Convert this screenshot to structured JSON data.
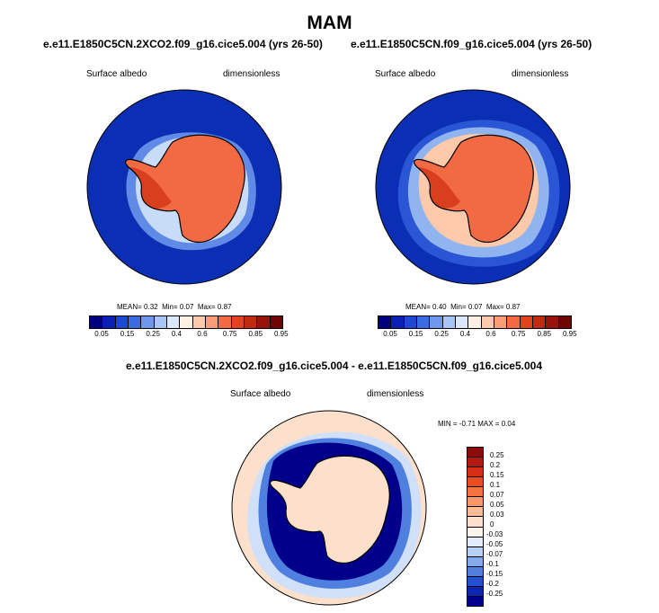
{
  "title": "MAM",
  "panels": [
    {
      "title": "e.e11.E1850C5CN.2XCO2.f09_g16.cice5.004 (yrs 26-50)",
      "variable": "Surface albedo",
      "units": "dimensionless",
      "stats": {
        "mean_label": "MEAN=",
        "mean": "0.32",
        "min_label": "Min=",
        "min": "0.07",
        "max_label": "Max=",
        "max": "0.87"
      }
    },
    {
      "title": "e.e11.E1850C5CN.f09_g16.cice5.004 (yrs 26-50)",
      "variable": "Surface albedo",
      "units": "dimensionless",
      "stats": {
        "mean_label": "MEAN=",
        "mean": "0.40",
        "min_label": "Min=",
        "min": "0.07",
        "max_label": "Max=",
        "max": "0.87"
      }
    },
    {
      "title": "e.e11.E1850C5CN.2XCO2.f09_g16.cice5.004 - e.e11.E1850C5CN.f09_g16.cice5.004",
      "variable": "Surface albedo",
      "units": "dimensionless",
      "stats_text": "MIN =  -0.71 MAX =   0.04"
    }
  ],
  "chart_data": [
    {
      "type": "heatmap",
      "projection": "south-polar-stereographic",
      "region": "Antarctica",
      "colorbar": {
        "orientation": "horizontal",
        "levels": [
          "0.05",
          "0.15",
          "0.25",
          "0.4",
          "0.6",
          "0.75",
          "0.85",
          "0.95"
        ],
        "colors": [
          "#00007f",
          "#0a1fb4",
          "#1f48d2",
          "#3b6be0",
          "#6e98ec",
          "#a8c6f3",
          "#dbe8fb",
          "#fff0e4",
          "#fcc9aa",
          "#f99d76",
          "#f26a44",
          "#e2421d",
          "#c12a12",
          "#98140a",
          "#6e0505"
        ]
      },
      "mean": 0.32,
      "min": 0.07,
      "max": 0.87
    },
    {
      "type": "heatmap",
      "projection": "south-polar-stereographic",
      "region": "Antarctica",
      "colorbar": {
        "orientation": "horizontal",
        "levels": [
          "0.05",
          "0.15",
          "0.25",
          "0.4",
          "0.6",
          "0.75",
          "0.85",
          "0.95"
        ],
        "colors": [
          "#00007f",
          "#0a1fb4",
          "#1f48d2",
          "#3b6be0",
          "#6e98ec",
          "#a8c6f3",
          "#dbe8fb",
          "#fff0e4",
          "#fcc9aa",
          "#f99d76",
          "#f26a44",
          "#e2421d",
          "#c12a12",
          "#98140a",
          "#6e0505"
        ]
      },
      "mean": 0.4,
      "min": 0.07,
      "max": 0.87
    },
    {
      "type": "heatmap",
      "projection": "south-polar-stereographic",
      "region": "Antarctica",
      "colorbar": {
        "orientation": "vertical",
        "labels_top_to_bottom": [
          "0.25",
          "0.2",
          "0.15",
          "0.1",
          "0.07",
          "0.05",
          "0.03",
          "0",
          "-0.03",
          "-0.05",
          "-0.07",
          "-0.1",
          "-0.15",
          "-0.2",
          "-0.25"
        ],
        "colors_top_to_bottom": [
          "#8e0b0b",
          "#b51a10",
          "#d62e15",
          "#ec4c22",
          "#f57341",
          "#f9996b",
          "#fbbc95",
          "#fde0cc",
          "#fdf4ec",
          "#e2ecfa",
          "#b8d0f4",
          "#85aaea",
          "#4f7fdf",
          "#2450d0",
          "#0c26b0",
          "#00008a"
        ]
      },
      "min": -0.71,
      "max": 0.04
    }
  ]
}
